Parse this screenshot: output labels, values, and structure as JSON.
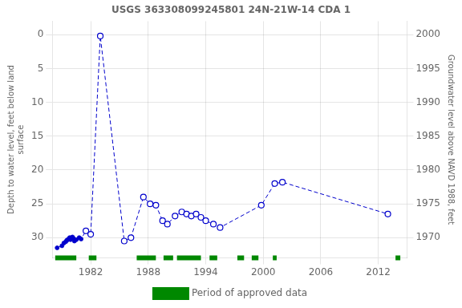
{
  "chart_data": {
    "type": "line",
    "title": "USGS 363308099245801 24N-21W-14 CDA 1",
    "ylabel": "Depth to water level, feet below land\nsurface",
    "y2label": "Groundwater level above NAVD 1988, feet",
    "xlim": [
      1978,
      2015
    ],
    "xticks": [
      1982,
      1988,
      1994,
      2000,
      2006,
      2012
    ],
    "ylim": [
      33,
      -2
    ],
    "yticks": [
      0,
      5,
      10,
      15,
      20,
      25,
      30
    ],
    "y2lim": [
      1967,
      2002
    ],
    "y2ticks": [
      1970,
      1975,
      1980,
      1985,
      1990,
      1995,
      2000
    ],
    "grid": true,
    "legend": "bottom",
    "series": [
      {
        "type": "line",
        "line_style": "dashed",
        "marker": "none",
        "color": "#0000cc",
        "x": [
          1978.5,
          1979.0,
          1979.2,
          1979.4,
          1979.5,
          1979.6,
          1979.7,
          1979.8,
          1979.9,
          1980.0,
          1980.1,
          1980.2,
          1980.3,
          1980.5,
          1980.8,
          1981.0,
          1981.5,
          1982.0,
          1983.0,
          1985.5,
          1986.2,
          1987.5,
          1988.2,
          1988.8,
          1989.5,
          1990.0,
          1990.8,
          1991.5,
          1992.0,
          1992.5,
          1993.0,
          1993.5,
          1994.0,
          1994.8,
          1995.5,
          1999.8,
          2001.2,
          2002.0,
          2013.0
        ],
        "values": [
          31.5,
          31.2,
          30.8,
          30.6,
          30.4,
          30.3,
          30.2,
          30.0,
          30.3,
          30.0,
          29.9,
          30.1,
          30.5,
          30.3,
          30.0,
          30.2,
          29.0,
          29.5,
          0.2,
          30.5,
          30.0,
          24.0,
          25.0,
          25.2,
          27.5,
          28.0,
          26.8,
          26.2,
          26.5,
          26.8,
          26.5,
          27.0,
          27.5,
          28.0,
          28.5,
          25.2,
          22.0,
          21.8,
          26.5
        ]
      },
      {
        "type": "scatter",
        "marker": "filled",
        "color": "#0000cc",
        "x": [
          1978.5,
          1979.0,
          1979.2,
          1979.4,
          1979.5,
          1979.6,
          1979.7,
          1979.8,
          1979.9,
          1980.0,
          1980.1,
          1980.2,
          1980.3,
          1980.5,
          1980.8,
          1981.0
        ],
        "values": [
          31.5,
          31.2,
          30.8,
          30.6,
          30.4,
          30.3,
          30.2,
          30.0,
          30.3,
          30.0,
          29.9,
          30.1,
          30.5,
          30.3,
          30.0,
          30.2
        ]
      },
      {
        "type": "scatter",
        "marker": "open",
        "color": "#0000cc",
        "x": [
          1981.5,
          1982.0,
          1983.0,
          1985.5,
          1986.2,
          1987.5,
          1988.2,
          1988.8,
          1989.5,
          1990.0,
          1990.8,
          1991.5,
          1992.0,
          1992.5,
          1993.0,
          1993.5,
          1994.0,
          1994.8,
          1995.5,
          1999.8,
          2001.2,
          2002.0,
          2013.0
        ],
        "values": [
          29.0,
          29.5,
          0.2,
          30.5,
          30.0,
          24.0,
          25.0,
          25.2,
          27.5,
          28.0,
          26.8,
          26.2,
          26.5,
          26.8,
          26.5,
          27.0,
          27.5,
          28.0,
          28.5,
          25.2,
          22.0,
          21.8,
          26.5
        ]
      },
      {
        "name": "Period of approved data",
        "type": "interval",
        "color": "#008800",
        "values": [
          [
            1978.3,
            1980.5
          ],
          [
            1981.8,
            1982.6
          ],
          [
            1986.8,
            1988.8
          ],
          [
            1989.6,
            1990.6
          ],
          [
            1991.0,
            1993.5
          ],
          [
            1994.4,
            1995.2
          ],
          [
            1997.3,
            1998.0
          ],
          [
            1998.8,
            1999.5
          ],
          [
            2001.0,
            2001.4
          ],
          [
            2013.8,
            2014.3
          ]
        ]
      }
    ]
  }
}
